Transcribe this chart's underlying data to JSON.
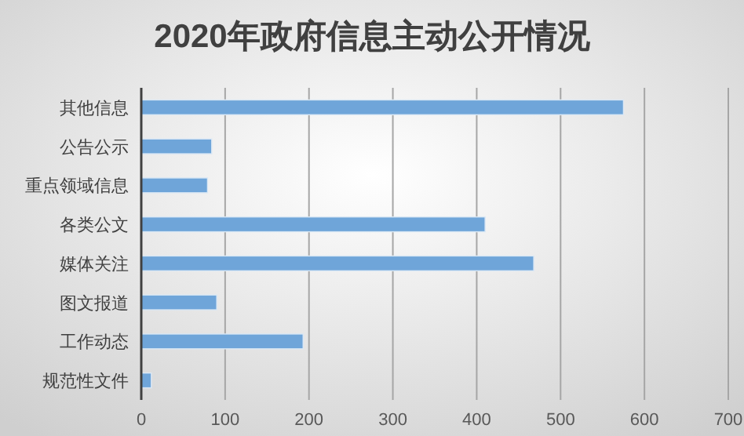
{
  "chart_data": {
    "type": "bar",
    "orientation": "horizontal",
    "title": "2020年政府信息主动公开情况",
    "categories": [
      "其他信息",
      "公告公示",
      "重点领域信息",
      "各类公文",
      "媒体关注",
      "图文报道",
      "工作动态",
      "规范性文件"
    ],
    "values": [
      575,
      84,
      79,
      410,
      468,
      90,
      193,
      12
    ],
    "color": "#6fa5d9",
    "xlim": [
      0,
      700
    ],
    "xticks": [
      0,
      100,
      200,
      300,
      400,
      500,
      600,
      700
    ],
    "grid": "x"
  }
}
